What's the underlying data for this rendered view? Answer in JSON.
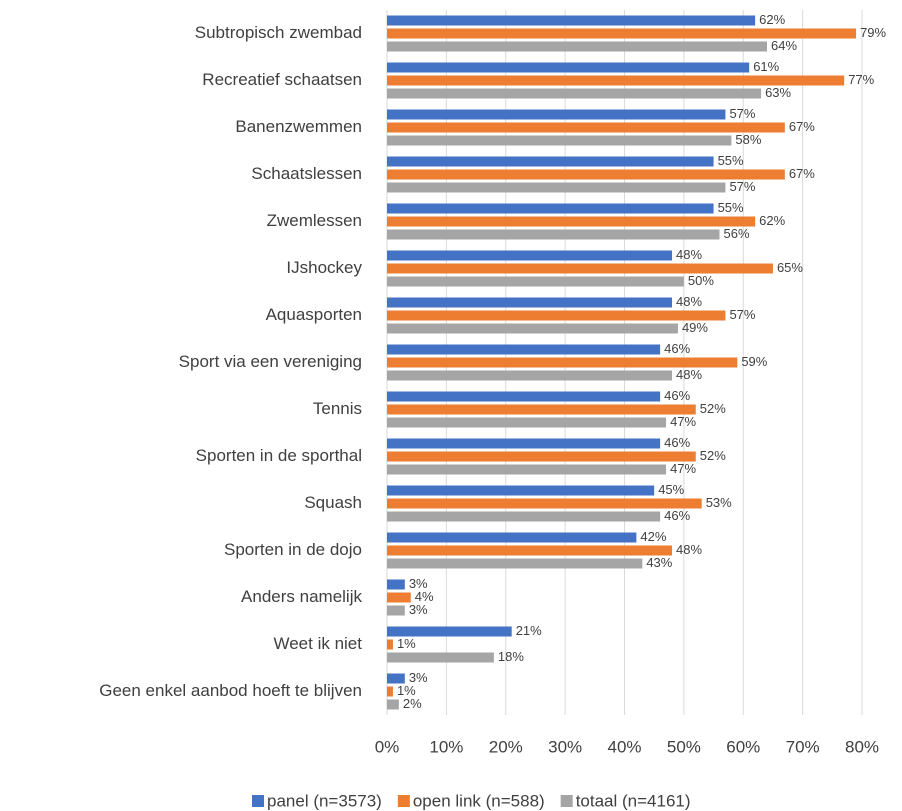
{
  "chart_data": {
    "type": "barh",
    "categories": [
      "Subtropisch zwembad",
      "Recreatief schaatsen",
      "Banenzwemmen",
      "Schaatslessen",
      "Zwemlessen",
      "IJshockey",
      "Aquasporten",
      "Sport via een vereniging",
      "Tennis",
      "Sporten in de sporthal",
      "Squash",
      "Sporten in de dojo",
      "Anders namelijk",
      "Weet ik niet",
      "Geen enkel aanbod hoeft te blijven"
    ],
    "series": [
      {
        "name": "panel (n=3573)",
        "color": "#4472c4",
        "values": [
          62,
          61,
          57,
          55,
          55,
          48,
          48,
          46,
          46,
          46,
          45,
          42,
          3,
          21,
          3
        ],
        "value_labels": [
          "62%",
          "61%",
          "57%",
          "55%",
          "55%",
          "48%",
          "48%",
          "46%",
          "46%",
          "46%",
          "45%",
          "42%",
          "3%",
          "21%",
          "3%"
        ]
      },
      {
        "name": "open link (n=588)",
        "color": "#ed7d31",
        "values": [
          79,
          77,
          67,
          67,
          62,
          65,
          57,
          59,
          52,
          52,
          53,
          48,
          4,
          1,
          1
        ],
        "value_labels": [
          "79%",
          "77%",
          "67%",
          "67%",
          "62%",
          "65%",
          "57%",
          "59%",
          "52%",
          "52%",
          "53%",
          "48%",
          "4%",
          "1%",
          "1%"
        ]
      },
      {
        "name": "totaal (n=4161)",
        "color": "#a5a5a5",
        "values": [
          64,
          63,
          58,
          57,
          56,
          50,
          49,
          48,
          47,
          47,
          46,
          43,
          3,
          18,
          2
        ],
        "value_labels": [
          "64%",
          "63%",
          "58%",
          "57%",
          "56%",
          "50%",
          "49%",
          "48%",
          "47%",
          "47%",
          "46%",
          "43%",
          "3%",
          "18%",
          "2%"
        ]
      }
    ],
    "xlim": [
      0,
      80
    ],
    "xticks": [
      {
        "value": 0,
        "label": "0%"
      },
      {
        "value": 10,
        "label": "10%"
      },
      {
        "value": 20,
        "label": "20%"
      },
      {
        "value": 30,
        "label": "30%"
      },
      {
        "value": 40,
        "label": "40%"
      },
      {
        "value": 50,
        "label": "50%"
      },
      {
        "value": 60,
        "label": "60%"
      },
      {
        "value": 70,
        "label": "70%"
      },
      {
        "value": 80,
        "label": "80%"
      }
    ],
    "grid": true,
    "legend": "bottom"
  }
}
